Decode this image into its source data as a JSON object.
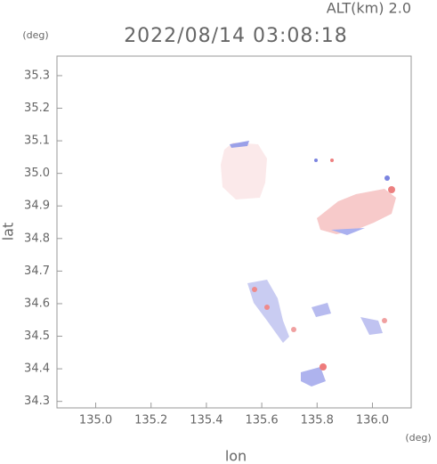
{
  "chart_data": {
    "type": "map",
    "title": "2022/08/14 03:08:18",
    "subtitle": "ALT(km) 2.0",
    "x_label": "lon",
    "y_label": "lat",
    "x_unit": "(deg)",
    "y_unit": "(deg)",
    "xlim": [
      134.86,
      136.14
    ],
    "ylim": [
      34.28,
      35.36
    ],
    "xticks": [
      {
        "value": 135.0,
        "label": "135.0"
      },
      135.2,
      135.4,
      135.6,
      135.8,
      {
        "value": 136.0,
        "label": "136.0"
      }
    ],
    "yticks": [
      34.3,
      34.4,
      34.5,
      34.6,
      34.7,
      34.8,
      34.9,
      {
        "value": 35.0,
        "label": "35.0"
      },
      35.1,
      35.2,
      35.3
    ]
  }
}
